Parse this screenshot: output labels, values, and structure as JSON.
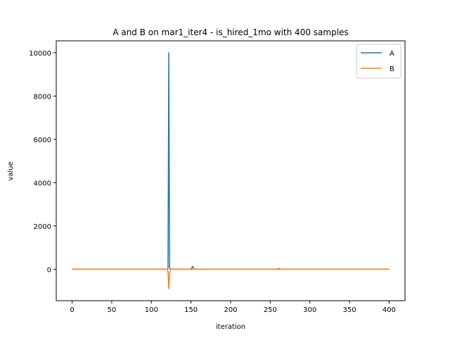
{
  "chart_data": {
    "type": "line",
    "title": "A and B on mar1_iter4 - is_hired_1mo with 400 samples",
    "xlabel": "iteration",
    "ylabel": "value",
    "xlim": [
      -20,
      420
    ],
    "ylim": [
      -1450,
      10550
    ],
    "xticks": [
      0,
      50,
      100,
      150,
      200,
      250,
      300,
      350,
      400
    ],
    "yticks": [
      0,
      2000,
      4000,
      6000,
      8000,
      10000
    ],
    "grid": false,
    "legend_position": "top-right",
    "series": [
      {
        "name": "A",
        "color": "#1f77b4",
        "points": [
          [
            0,
            5
          ],
          [
            100,
            5
          ],
          [
            120,
            5
          ],
          [
            121,
            20
          ],
          [
            122,
            10000
          ],
          [
            123,
            100
          ],
          [
            124,
            5
          ],
          [
            150,
            5
          ],
          [
            152,
            140
          ],
          [
            154,
            5
          ],
          [
            200,
            5
          ],
          [
            260,
            5
          ],
          [
            261,
            40
          ],
          [
            262,
            5
          ],
          [
            300,
            5
          ],
          [
            400,
            5
          ]
        ]
      },
      {
        "name": "B",
        "color": "#ff7f0e",
        "points": [
          [
            0,
            0
          ],
          [
            100,
            0
          ],
          [
            120,
            0
          ],
          [
            121,
            -100
          ],
          [
            122,
            -900
          ],
          [
            123,
            -200
          ],
          [
            124,
            0
          ],
          [
            200,
            0
          ],
          [
            300,
            0
          ],
          [
            400,
            0
          ]
        ]
      }
    ]
  }
}
